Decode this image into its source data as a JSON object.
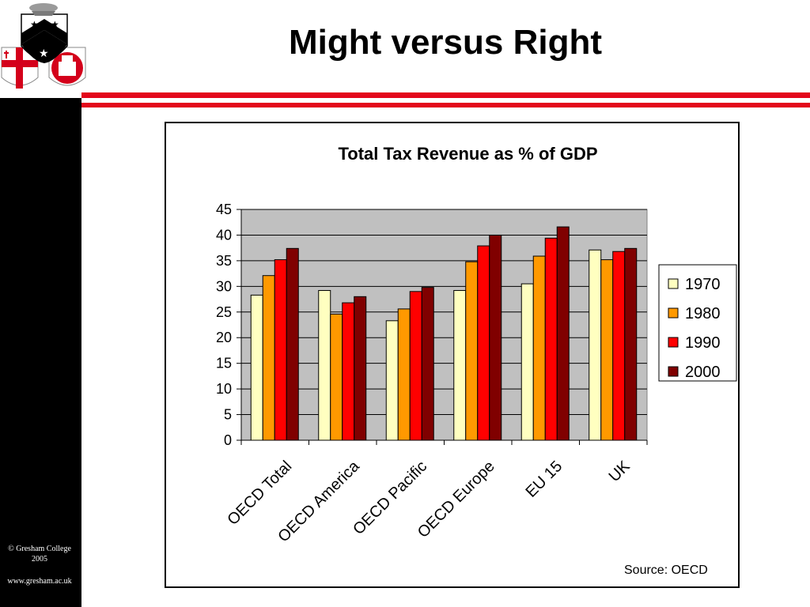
{
  "slide": {
    "title": "Might versus Right",
    "copyright": "© Gresham College",
    "copyright_year": "2005",
    "website": "www.gresham.ac.uk",
    "source": "Source: OECD"
  },
  "colors": {
    "accent_red": "#e3061b",
    "plot_background": "#c0c0c0",
    "left_bar": "#000000"
  },
  "icons": {
    "crest": "gresham-college-crest"
  },
  "chart_data": {
    "type": "bar",
    "title": "Total Tax Revenue as % of GDP",
    "xlabel": "",
    "ylabel": "",
    "ylim": [
      0,
      45
    ],
    "yticks": [
      0,
      5,
      10,
      15,
      20,
      25,
      30,
      35,
      40,
      45
    ],
    "grid": true,
    "legend_position": "right",
    "categories": [
      "OECD Total",
      "OECD America",
      "OECD Pacific",
      "OECD Europe",
      "EU 15",
      "UK"
    ],
    "series": [
      {
        "name": "1970",
        "color": "#ffffc0",
        "values": [
          28.3,
          29.2,
          23.3,
          29.2,
          30.5,
          37.1
        ]
      },
      {
        "name": "1980",
        "color": "#ff9900",
        "values": [
          32.1,
          24.6,
          25.6,
          34.8,
          35.9,
          35.2
        ]
      },
      {
        "name": "1990",
        "color": "#ff0000",
        "values": [
          35.2,
          26.8,
          29.0,
          37.9,
          39.4,
          36.8
        ]
      },
      {
        "name": "2000",
        "color": "#800000",
        "values": [
          37.4,
          28.0,
          29.8,
          40.0,
          41.6,
          37.4
        ]
      }
    ]
  }
}
